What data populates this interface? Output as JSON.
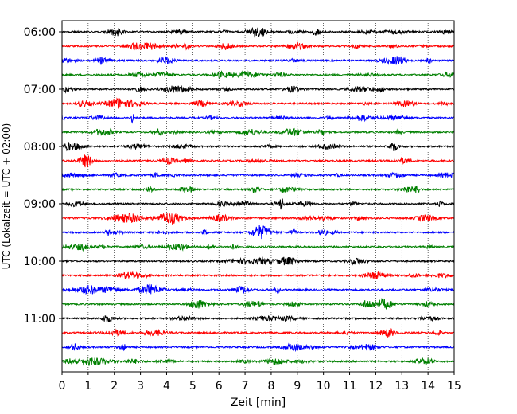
{
  "chart_data": {
    "type": "line",
    "title": "",
    "xlabel": "Zeit  [min]",
    "ylabel": "UTC (Lokalzeit = UTC + 02:00)",
    "xlim": [
      0,
      15
    ],
    "x_ticks": [
      "0",
      "1",
      "2",
      "3",
      "4",
      "5",
      "6",
      "7",
      "8",
      "9",
      "10",
      "11",
      "12",
      "13",
      "14",
      "15"
    ],
    "y_ticks": [
      "06:00",
      "07:00",
      "08:00",
      "09:00",
      "10:00",
      "11:00"
    ],
    "trace_interval_min": 15,
    "trace_count": 24,
    "grid": "vertical dotted at each minute",
    "legend": "none",
    "series_colors": [
      "#000000",
      "#ff0000",
      "#0000ff",
      "#008000"
    ],
    "traces": [
      {
        "start": "06:00",
        "color": "#000000"
      },
      {
        "start": "06:15",
        "color": "#ff0000"
      },
      {
        "start": "06:30",
        "color": "#0000ff"
      },
      {
        "start": "06:45",
        "color": "#008000"
      },
      {
        "start": "07:00",
        "color": "#000000"
      },
      {
        "start": "07:15",
        "color": "#ff0000"
      },
      {
        "start": "07:30",
        "color": "#0000ff"
      },
      {
        "start": "07:45",
        "color": "#008000"
      },
      {
        "start": "08:00",
        "color": "#000000"
      },
      {
        "start": "08:15",
        "color": "#ff0000"
      },
      {
        "start": "08:30",
        "color": "#0000ff"
      },
      {
        "start": "08:45",
        "color": "#008000"
      },
      {
        "start": "09:00",
        "color": "#000000"
      },
      {
        "start": "09:15",
        "color": "#ff0000"
      },
      {
        "start": "09:30",
        "color": "#0000ff"
      },
      {
        "start": "09:45",
        "color": "#008000"
      },
      {
        "start": "10:00",
        "color": "#000000"
      },
      {
        "start": "10:15",
        "color": "#ff0000"
      },
      {
        "start": "10:30",
        "color": "#0000ff"
      },
      {
        "start": "10:45",
        "color": "#008000"
      },
      {
        "start": "11:00",
        "color": "#000000"
      },
      {
        "start": "11:15",
        "color": "#ff0000"
      },
      {
        "start": "11:30",
        "color": "#0000ff"
      },
      {
        "start": "11:45",
        "color": "#008000"
      }
    ],
    "notable_events": [
      {
        "start": "07:30",
        "minute": 2.7
      },
      {
        "start": "08:45",
        "minute": 13.6
      },
      {
        "start": "09:00",
        "minute": 8.4
      }
    ]
  }
}
